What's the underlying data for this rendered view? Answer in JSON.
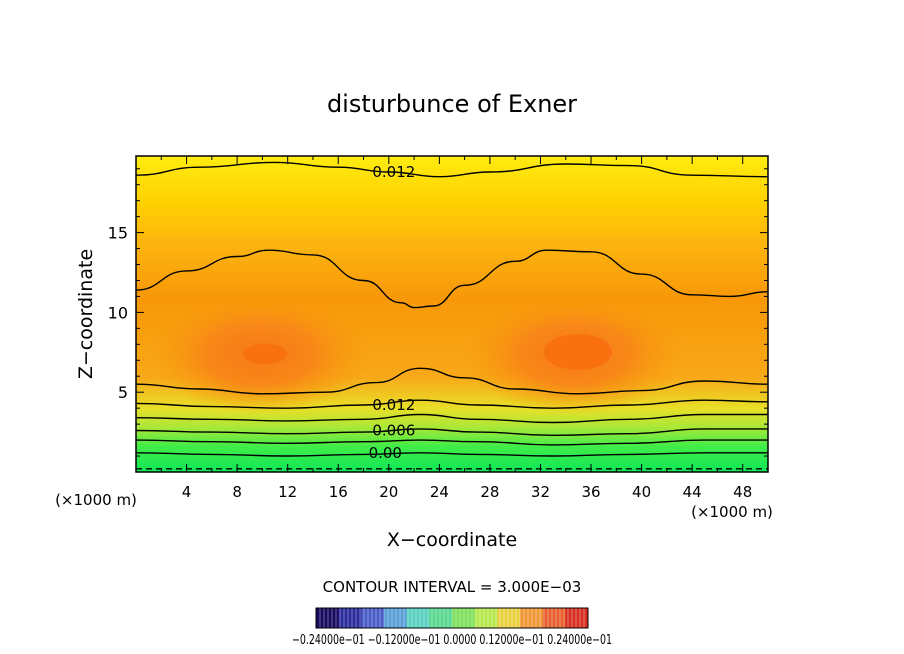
{
  "chart_data": {
    "type": "contour",
    "title": "disturbunce of Exner",
    "xlabel": "X−coordinate",
    "ylabel": "Z−coordinate",
    "x_unit_label": "(×1000 m)",
    "y_unit_label": "(×1000 m)",
    "xlim": [
      0,
      50
    ],
    "ylim": [
      0,
      19.8
    ],
    "x_ticks": [
      4,
      8,
      12,
      16,
      20,
      24,
      28,
      32,
      36,
      40,
      44,
      48
    ],
    "y_ticks": [
      5,
      10,
      15
    ],
    "contour_interval_label": "CONTOUR INTERVAL = 3.000E−03",
    "contour_labels": [
      {
        "text": "0.012",
        "x": 18.7,
        "y": 18.8
      },
      {
        "text": "0.012",
        "x": 18.7,
        "y": 4.2
      },
      {
        "text": "0.006",
        "x": 18.7,
        "y": 2.6
      },
      {
        "text": "0.00",
        "x": 18.4,
        "y": 1.2
      }
    ],
    "contour_lines": [
      {
        "level": 0.0,
        "dashed": true,
        "points": [
          [
            0,
            0.2
          ],
          [
            50,
            0.2
          ]
        ]
      },
      {
        "level": 0.0,
        "dashed": false,
        "points": [
          [
            0,
            1.2
          ],
          [
            6,
            1.1
          ],
          [
            12,
            1.0
          ],
          [
            18,
            1.1
          ],
          [
            22.5,
            1.2
          ],
          [
            27,
            1.1
          ],
          [
            33,
            1.0
          ],
          [
            39,
            1.1
          ],
          [
            45,
            1.2
          ],
          [
            50,
            1.2
          ]
        ]
      },
      {
        "level": 0.003,
        "dashed": false,
        "points": [
          [
            0,
            2.0
          ],
          [
            6,
            1.9
          ],
          [
            12,
            1.8
          ],
          [
            18,
            1.9
          ],
          [
            22.5,
            2.0
          ],
          [
            27,
            1.9
          ],
          [
            33,
            1.7
          ],
          [
            39,
            1.8
          ],
          [
            45,
            2.0
          ],
          [
            50,
            2.0
          ]
        ]
      },
      {
        "level": 0.006,
        "dashed": false,
        "points": [
          [
            0,
            2.6
          ],
          [
            6,
            2.5
          ],
          [
            12,
            2.4
          ],
          [
            18,
            2.5
          ],
          [
            22.5,
            2.7
          ],
          [
            27,
            2.5
          ],
          [
            33,
            2.3
          ],
          [
            39,
            2.4
          ],
          [
            45,
            2.7
          ],
          [
            50,
            2.7
          ]
        ]
      },
      {
        "level": 0.009,
        "dashed": false,
        "points": [
          [
            0,
            3.4
          ],
          [
            6,
            3.3
          ],
          [
            12,
            3.2
          ],
          [
            18,
            3.3
          ],
          [
            22.5,
            3.6
          ],
          [
            27,
            3.3
          ],
          [
            33,
            3.1
          ],
          [
            39,
            3.3
          ],
          [
            45,
            3.6
          ],
          [
            50,
            3.6
          ]
        ]
      },
      {
        "level": 0.012,
        "dashed": false,
        "points": [
          [
            0,
            4.3
          ],
          [
            6,
            4.1
          ],
          [
            12,
            4.0
          ],
          [
            18,
            4.2
          ],
          [
            22.5,
            4.5
          ],
          [
            27,
            4.2
          ],
          [
            33,
            4.0
          ],
          [
            39,
            4.2
          ],
          [
            45,
            4.5
          ],
          [
            50,
            4.4
          ]
        ]
      },
      {
        "level": 0.015,
        "dashed": false,
        "points": [
          [
            0,
            5.5
          ],
          [
            5,
            5.2
          ],
          [
            10,
            4.9
          ],
          [
            15,
            5.0
          ],
          [
            19,
            5.6
          ],
          [
            22.5,
            6.5
          ],
          [
            26,
            5.9
          ],
          [
            30,
            5.2
          ],
          [
            35,
            4.9
          ],
          [
            40,
            5.1
          ],
          [
            45,
            5.7
          ],
          [
            50,
            5.5
          ]
        ]
      },
      {
        "level": 0.015,
        "dashed": false,
        "points": [
          [
            0,
            11.4
          ],
          [
            4,
            12.6
          ],
          [
            8,
            13.5
          ],
          [
            10.5,
            13.9
          ],
          [
            14,
            13.6
          ],
          [
            18,
            12.0
          ],
          [
            21,
            10.6
          ],
          [
            22,
            10.3
          ],
          [
            23.5,
            10.4
          ],
          [
            26,
            11.7
          ],
          [
            30,
            13.2
          ],
          [
            32.5,
            13.9
          ],
          [
            36,
            13.8
          ],
          [
            40,
            12.4
          ],
          [
            44,
            11.1
          ],
          [
            47,
            11.0
          ],
          [
            50,
            11.3
          ]
        ]
      },
      {
        "level": 0.012,
        "dashed": false,
        "points": [
          [
            0,
            18.6
          ],
          [
            5,
            19.1
          ],
          [
            11,
            19.4
          ],
          [
            16,
            19.1
          ],
          [
            20,
            18.8
          ],
          [
            24,
            18.5
          ],
          [
            28,
            18.8
          ],
          [
            34,
            19.3
          ],
          [
            39,
            19.2
          ],
          [
            44,
            18.6
          ],
          [
            50,
            18.5
          ]
        ]
      }
    ],
    "colorbar": {
      "label": "−0.24000e−01 −0.12000e−01 0.0000 0.12000e−01 0.24000e−01",
      "colors": [
        "#1a0a60",
        "#2c2c9c",
        "#4a5cc8",
        "#5aa0d8",
        "#5ad0c0",
        "#5ad890",
        "#80e060",
        "#b8e850",
        "#e8d040",
        "#f09838",
        "#e86030",
        "#d83020"
      ]
    }
  }
}
